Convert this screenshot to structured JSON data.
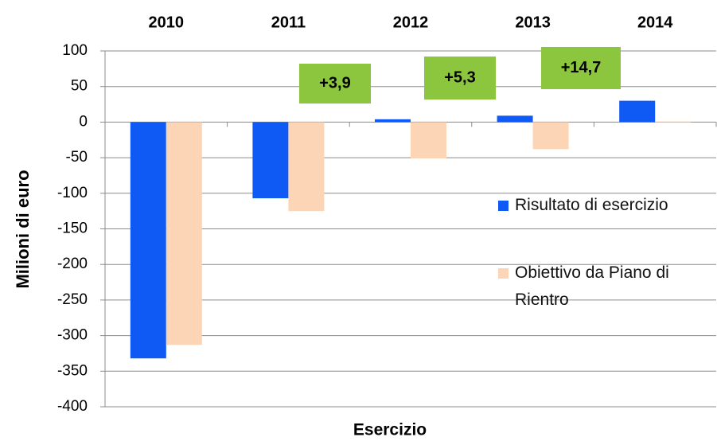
{
  "chart_data": {
    "type": "bar",
    "categories": [
      "2010",
      "2011",
      "2012",
      "2013",
      "2014"
    ],
    "series": [
      {
        "name": "Risultato di esercizio",
        "color": "#0f5af5",
        "values": [
          -332,
          -107,
          4,
          9,
          30
        ]
      },
      {
        "name": "Obiettivo da Piano di Rientro",
        "color": "#fbd5b5",
        "values": [
          -313,
          -125,
          -51,
          -38,
          1
        ]
      }
    ],
    "ylim": [
      -400,
      100
    ],
    "yticks": [
      -400,
      -350,
      -300,
      -250,
      -200,
      -150,
      -100,
      -50,
      0,
      50,
      100
    ],
    "ylabel": "Milioni di euro",
    "xlabel": "Esercizio",
    "annotations": [
      "+3,9",
      "+5,3",
      "+14,7"
    ],
    "grid": true
  }
}
